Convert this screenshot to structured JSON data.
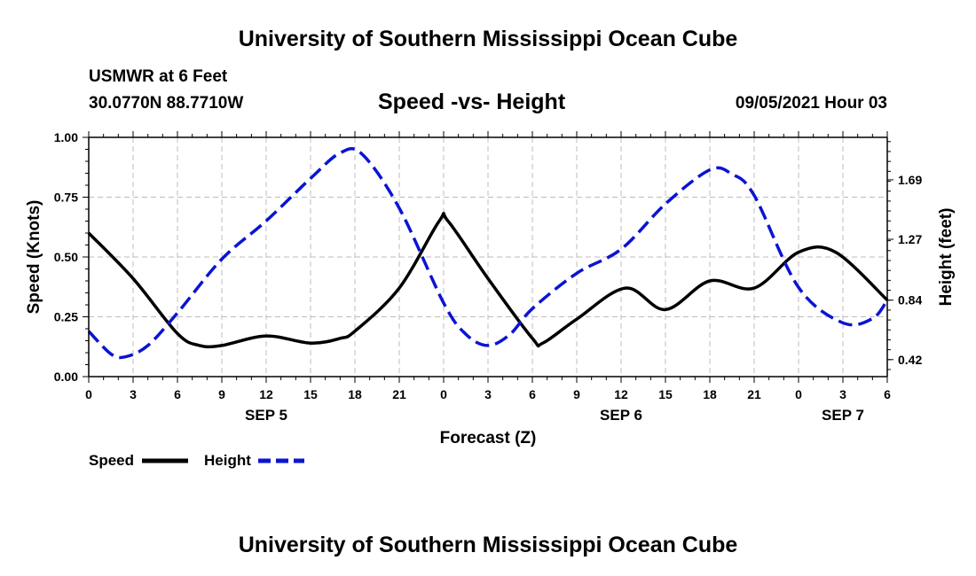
{
  "page": {
    "top_title": "University of Southern Mississippi Ocean Cube",
    "bottom_title": "University of Southern Mississippi Ocean Cube",
    "station": "USMWR at 6 Feet",
    "location": "30.0770N  88.7710W",
    "datetime": "09/05/2021 Hour 03"
  },
  "chart_data": {
    "type": "line",
    "title": "Speed -vs- Height",
    "xlabel": "Forecast (Z)",
    "ylabel": "Speed (Knots)",
    "y2label": "Height (feet)",
    "xlim": [
      0,
      54
    ],
    "ylim": [
      0,
      1.0
    ],
    "y2lim": [
      0.3,
      1.99
    ],
    "x_ticks": [
      0,
      3,
      6,
      9,
      12,
      15,
      18,
      21,
      24,
      27,
      30,
      33,
      36,
      39,
      42,
      45,
      48,
      51,
      54
    ],
    "x_tick_labels": [
      "0",
      "3",
      "6",
      "9",
      "12",
      "15",
      "18",
      "21",
      "0",
      "3",
      "6",
      "9",
      "12",
      "15",
      "18",
      "21",
      "0",
      "3",
      "6"
    ],
    "y_ticks": [
      0,
      0.25,
      0.5,
      0.75,
      1.0
    ],
    "y_tick_labels": [
      "0.00",
      "0.25",
      "0.50",
      "0.75",
      "1.00"
    ],
    "y2_ticks": [
      0.42,
      0.84,
      1.27,
      1.69
    ],
    "y2_tick_labels": [
      "0.42",
      "0.84",
      "1.27",
      "1.69"
    ],
    "day_labels": [
      {
        "label": "SEP 5",
        "x": 12
      },
      {
        "label": "SEP 6",
        "x": 36
      },
      {
        "label": "SEP 7",
        "x": 51
      }
    ],
    "grid": true,
    "legend_position": "bottom-left",
    "series": [
      {
        "name": "Speed",
        "axis": "left",
        "color": "#000000",
        "style": "solid",
        "x": [
          0,
          3,
          6,
          7.5,
          9,
          12,
          15,
          17,
          18,
          21,
          23.7,
          24.3,
          27,
          30,
          30.7,
          33,
          36.3,
          39,
          42,
          45,
          48,
          50.5,
          54
        ],
        "values": [
          0.6,
          0.41,
          0.18,
          0.13,
          0.13,
          0.17,
          0.14,
          0.16,
          0.19,
          0.37,
          0.65,
          0.65,
          0.41,
          0.16,
          0.14,
          0.24,
          0.37,
          0.28,
          0.4,
          0.37,
          0.52,
          0.52,
          0.32
        ]
      },
      {
        "name": "Height",
        "axis": "right",
        "color": "#0a14d2",
        "style": "dashed",
        "x": [
          0,
          1.5,
          2.5,
          4,
          6,
          9,
          12,
          15,
          17,
          18.5,
          21,
          24,
          25.5,
          27,
          28.5,
          30,
          33,
          36,
          39,
          42,
          43.5,
          45,
          48,
          51,
          53,
          54
        ],
        "values": [
          0.62,
          0.46,
          0.44,
          0.52,
          0.75,
          1.13,
          1.4,
          1.7,
          1.88,
          1.87,
          1.49,
          0.82,
          0.6,
          0.52,
          0.6,
          0.78,
          1.03,
          1.2,
          1.52,
          1.76,
          1.73,
          1.58,
          0.93,
          0.68,
          0.71,
          0.84
        ]
      }
    ]
  }
}
